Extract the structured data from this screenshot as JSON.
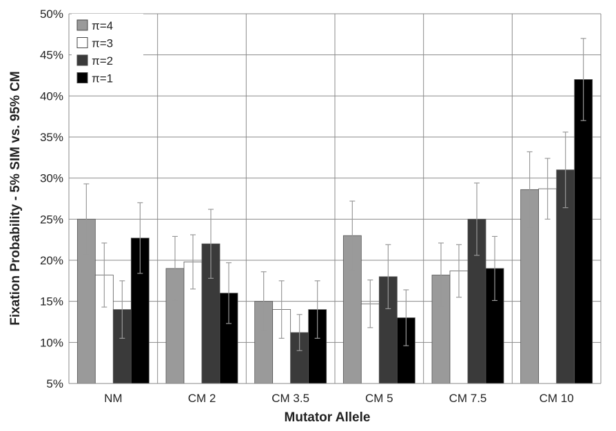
{
  "chart_data": {
    "type": "bar",
    "xlabel": "Mutator Allele",
    "ylabel": "Fixation Probability  - 5% SIM vs. 95% CM",
    "ylim": [
      5,
      50
    ],
    "y_ticks": [
      5,
      10,
      15,
      20,
      25,
      30,
      35,
      40,
      45,
      50
    ],
    "y_tick_labels": [
      "5%",
      "10%",
      "15%",
      "20%",
      "25%",
      "30%",
      "35%",
      "40%",
      "45%",
      "50%"
    ],
    "grid": true,
    "legend_position": "top-left",
    "categories": [
      "NM",
      "CM 2",
      "CM 3.5",
      "CM 5",
      "CM 7.5",
      "CM 10"
    ],
    "series": [
      {
        "name": "π=4",
        "color": "#9a9a9a",
        "values": [
          25,
          19,
          15,
          23,
          18.2,
          28.6
        ],
        "errors": [
          4.3,
          3.9,
          3.6,
          4.2,
          3.9,
          4.6
        ]
      },
      {
        "name": "π=3",
        "color": "#ffffff",
        "values": [
          18.2,
          19.8,
          14,
          14.7,
          18.7,
          28.7
        ],
        "errors": [
          3.9,
          3.3,
          3.5,
          2.9,
          3.2,
          3.7
        ]
      },
      {
        "name": "π=2",
        "color": "#3a3a3a",
        "values": [
          14,
          22,
          11.2,
          18,
          25,
          31
        ],
        "errors": [
          3.5,
          4.2,
          2.2,
          3.9,
          4.4,
          4.6
        ]
      },
      {
        "name": "π=1",
        "color": "#000000",
        "values": [
          22.7,
          16,
          14,
          13,
          19,
          42
        ],
        "errors": [
          4.3,
          3.7,
          3.5,
          3.4,
          3.9,
          5.0
        ]
      }
    ]
  }
}
